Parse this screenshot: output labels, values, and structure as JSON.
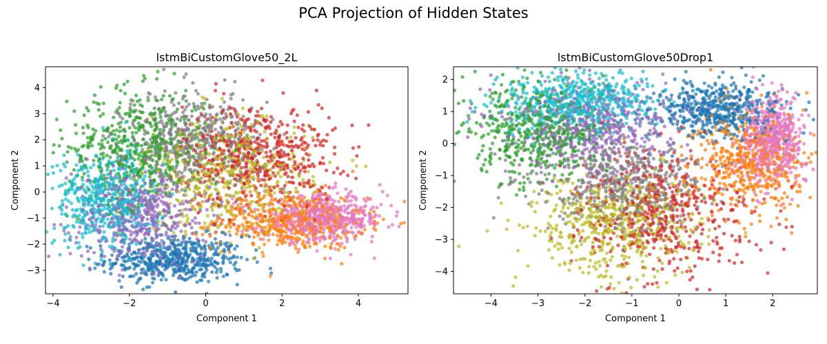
{
  "figure": {
    "title": "PCA Projection of Hidden States"
  },
  "colors": [
    "#1f77b4",
    "#ff7f0e",
    "#2ca02c",
    "#d62728",
    "#9467bd",
    "#e377c2",
    "#7f7f7f",
    "#bcbd22",
    "#17becf"
  ],
  "chart_data": [
    {
      "type": "scatter",
      "title": "lstmBiCustomGlove50_2L",
      "xlabel": "Component 1",
      "ylabel": "Component 2",
      "xlim": [
        -4.2,
        5.3
      ],
      "ylim": [
        -3.9,
        4.8
      ],
      "xticks": [
        -4,
        -2,
        0,
        2,
        4
      ],
      "yticks": [
        -3,
        -2,
        -1,
        0,
        1,
        2,
        3,
        4
      ],
      "clusters": [
        {
          "color": "#1f77b4",
          "center": [
            -0.8,
            -2.6
          ],
          "spread": [
            0.9,
            0.45
          ]
        },
        {
          "color": "#ff7f0e",
          "center": [
            2.2,
            -1.1
          ],
          "spread": [
            1.0,
            0.55
          ]
        },
        {
          "color": "#2ca02c",
          "center": [
            -1.8,
            1.7
          ],
          "spread": [
            0.9,
            1.1
          ]
        },
        {
          "color": "#d62728",
          "center": [
            1.4,
            1.4
          ],
          "spread": [
            1.0,
            1.0
          ]
        },
        {
          "color": "#9467bd",
          "center": [
            -1.7,
            -0.9
          ],
          "spread": [
            0.9,
            0.9
          ]
        },
        {
          "color": "#e377c2",
          "center": [
            3.1,
            -1.0
          ],
          "spread": [
            0.8,
            0.45
          ]
        },
        {
          "color": "#7f7f7f",
          "center": [
            -0.3,
            2.0
          ],
          "spread": [
            0.9,
            0.9
          ]
        },
        {
          "color": "#bcbd22",
          "center": [
            0.6,
            0.6
          ],
          "spread": [
            1.1,
            1.1
          ]
        },
        {
          "color": "#17becf",
          "center": [
            -2.6,
            -0.3
          ],
          "spread": [
            0.7,
            0.9
          ]
        }
      ]
    },
    {
      "type": "scatter",
      "title": "lstmBiCustomGlove50Drop1",
      "xlabel": "Component 1",
      "ylabel": "Component 2",
      "xlim": [
        -4.8,
        2.95
      ],
      "ylim": [
        -4.7,
        2.4
      ],
      "xticks": [
        -4,
        -3,
        -2,
        -1,
        0,
        1,
        2
      ],
      "yticks": [
        -4,
        -3,
        -2,
        -1,
        0,
        1,
        2
      ],
      "clusters": [
        {
          "color": "#1f77b4",
          "center": [
            0.9,
            1.1
          ],
          "spread": [
            0.7,
            0.45
          ]
        },
        {
          "color": "#ff7f0e",
          "center": [
            1.5,
            -0.5
          ],
          "spread": [
            0.6,
            0.8
          ]
        },
        {
          "color": "#2ca02c",
          "center": [
            -3.0,
            0.4
          ],
          "spread": [
            0.7,
            0.8
          ]
        },
        {
          "color": "#d62728",
          "center": [
            -0.3,
            -2.2
          ],
          "spread": [
            0.9,
            1.0
          ]
        },
        {
          "color": "#9467bd",
          "center": [
            -1.8,
            0.5
          ],
          "spread": [
            0.9,
            0.7
          ]
        },
        {
          "color": "#e377c2",
          "center": [
            2.0,
            0.1
          ],
          "spread": [
            0.35,
            0.7
          ]
        },
        {
          "color": "#7f7f7f",
          "center": [
            -1.3,
            -1.3
          ],
          "spread": [
            0.9,
            0.7
          ]
        },
        {
          "color": "#bcbd22",
          "center": [
            -1.4,
            -2.6
          ],
          "spread": [
            0.9,
            0.8
          ]
        },
        {
          "color": "#17becf",
          "center": [
            -2.2,
            1.3
          ],
          "spread": [
            0.8,
            0.5
          ]
        }
      ]
    }
  ]
}
